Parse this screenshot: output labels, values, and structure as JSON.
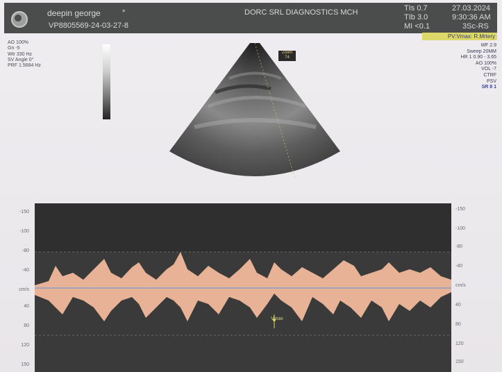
{
  "header": {
    "patient_name": "deepin george",
    "star": "*",
    "patient_id": "VP8805569-24-03-27-8",
    "facility": "DORC SRL DIAGNOSTICS MCH",
    "tis": "TIs 0.7",
    "tib": "TIb 3.0",
    "mi": "MI <0.1",
    "date": "27.03.2024",
    "time": "9:30:36 AM",
    "probe": "3Sc-RS",
    "mode_badge": "PV:Vmax: R.Mrtery"
  },
  "left_info": [
    "AO 100%",
    "Gn -5",
    "Wtr 330 Hz",
    "SV Angle 0°",
    "PRF 1.5684 Hz"
  ],
  "right_info": [
    "WF 2.9",
    "Sweep 20MM",
    "HR 1 0.90 - 3.65",
    "AO 100%",
    "VOL -7",
    "CTRF",
    "PSV",
    "SR 8 1"
  ],
  "fan_tag": {
    "line1": "Zoom",
    "line2": "74"
  },
  "cursor_label": "Vmax",
  "doppler_scale_left": [
    "-150",
    "-100",
    "-80",
    "-40",
    "cm/s",
    "40",
    "80",
    "120",
    "150"
  ],
  "doppler_scale_right": [
    "-150",
    "-100",
    "-80",
    "-40",
    "cm/s",
    "40",
    "80",
    "120",
    "150"
  ],
  "colors": {
    "header_bg": "#4b4d4c",
    "badge_bg": "#dcd86a",
    "spectrum": "#f0b89a",
    "doppler_bg": "#3a3a3a"
  }
}
